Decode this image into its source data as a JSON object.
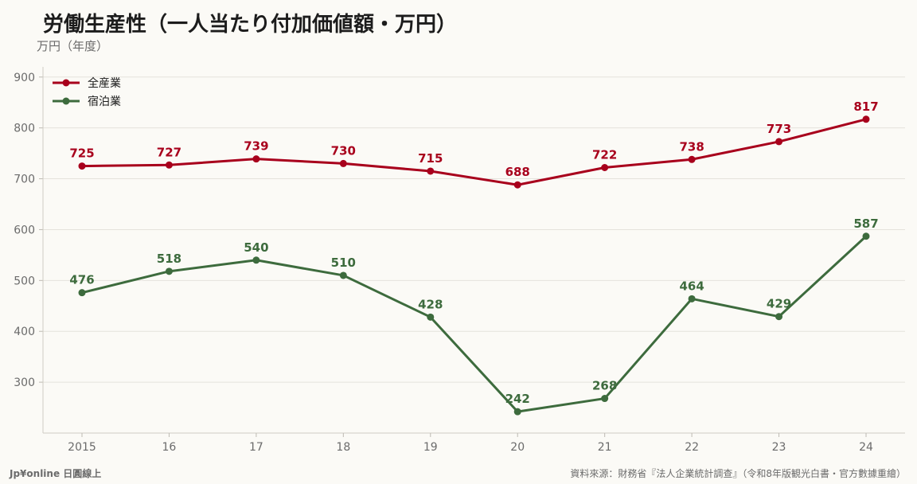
{
  "chart_data": {
    "type": "line",
    "title": "労働生産性（一人当たり付加価値額・万円）",
    "unit_label": "万円（年度）",
    "categories": [
      "2015",
      "16",
      "17",
      "18",
      "19",
      "20",
      "21",
      "22",
      "23",
      "24"
    ],
    "y_ticks": [
      300,
      400,
      500,
      600,
      700,
      800,
      900
    ],
    "ylim": [
      200,
      920
    ],
    "grid": true,
    "legend_position": "top-left",
    "series": [
      {
        "name": "全産業",
        "color": "#a8001c",
        "values": [
          725,
          727,
          739,
          730,
          715,
          688,
          722,
          738,
          773,
          817
        ]
      },
      {
        "name": "宿泊業",
        "color": "#3d6b3d",
        "values": [
          476,
          518,
          540,
          510,
          428,
          242,
          268,
          464,
          429,
          587
        ]
      }
    ]
  },
  "footer": {
    "left": "Jp¥online 日圓線上",
    "right": "資料來源：財務省『法人企業統計調查』（令和8年版観光白書・官方數據重繪）"
  }
}
